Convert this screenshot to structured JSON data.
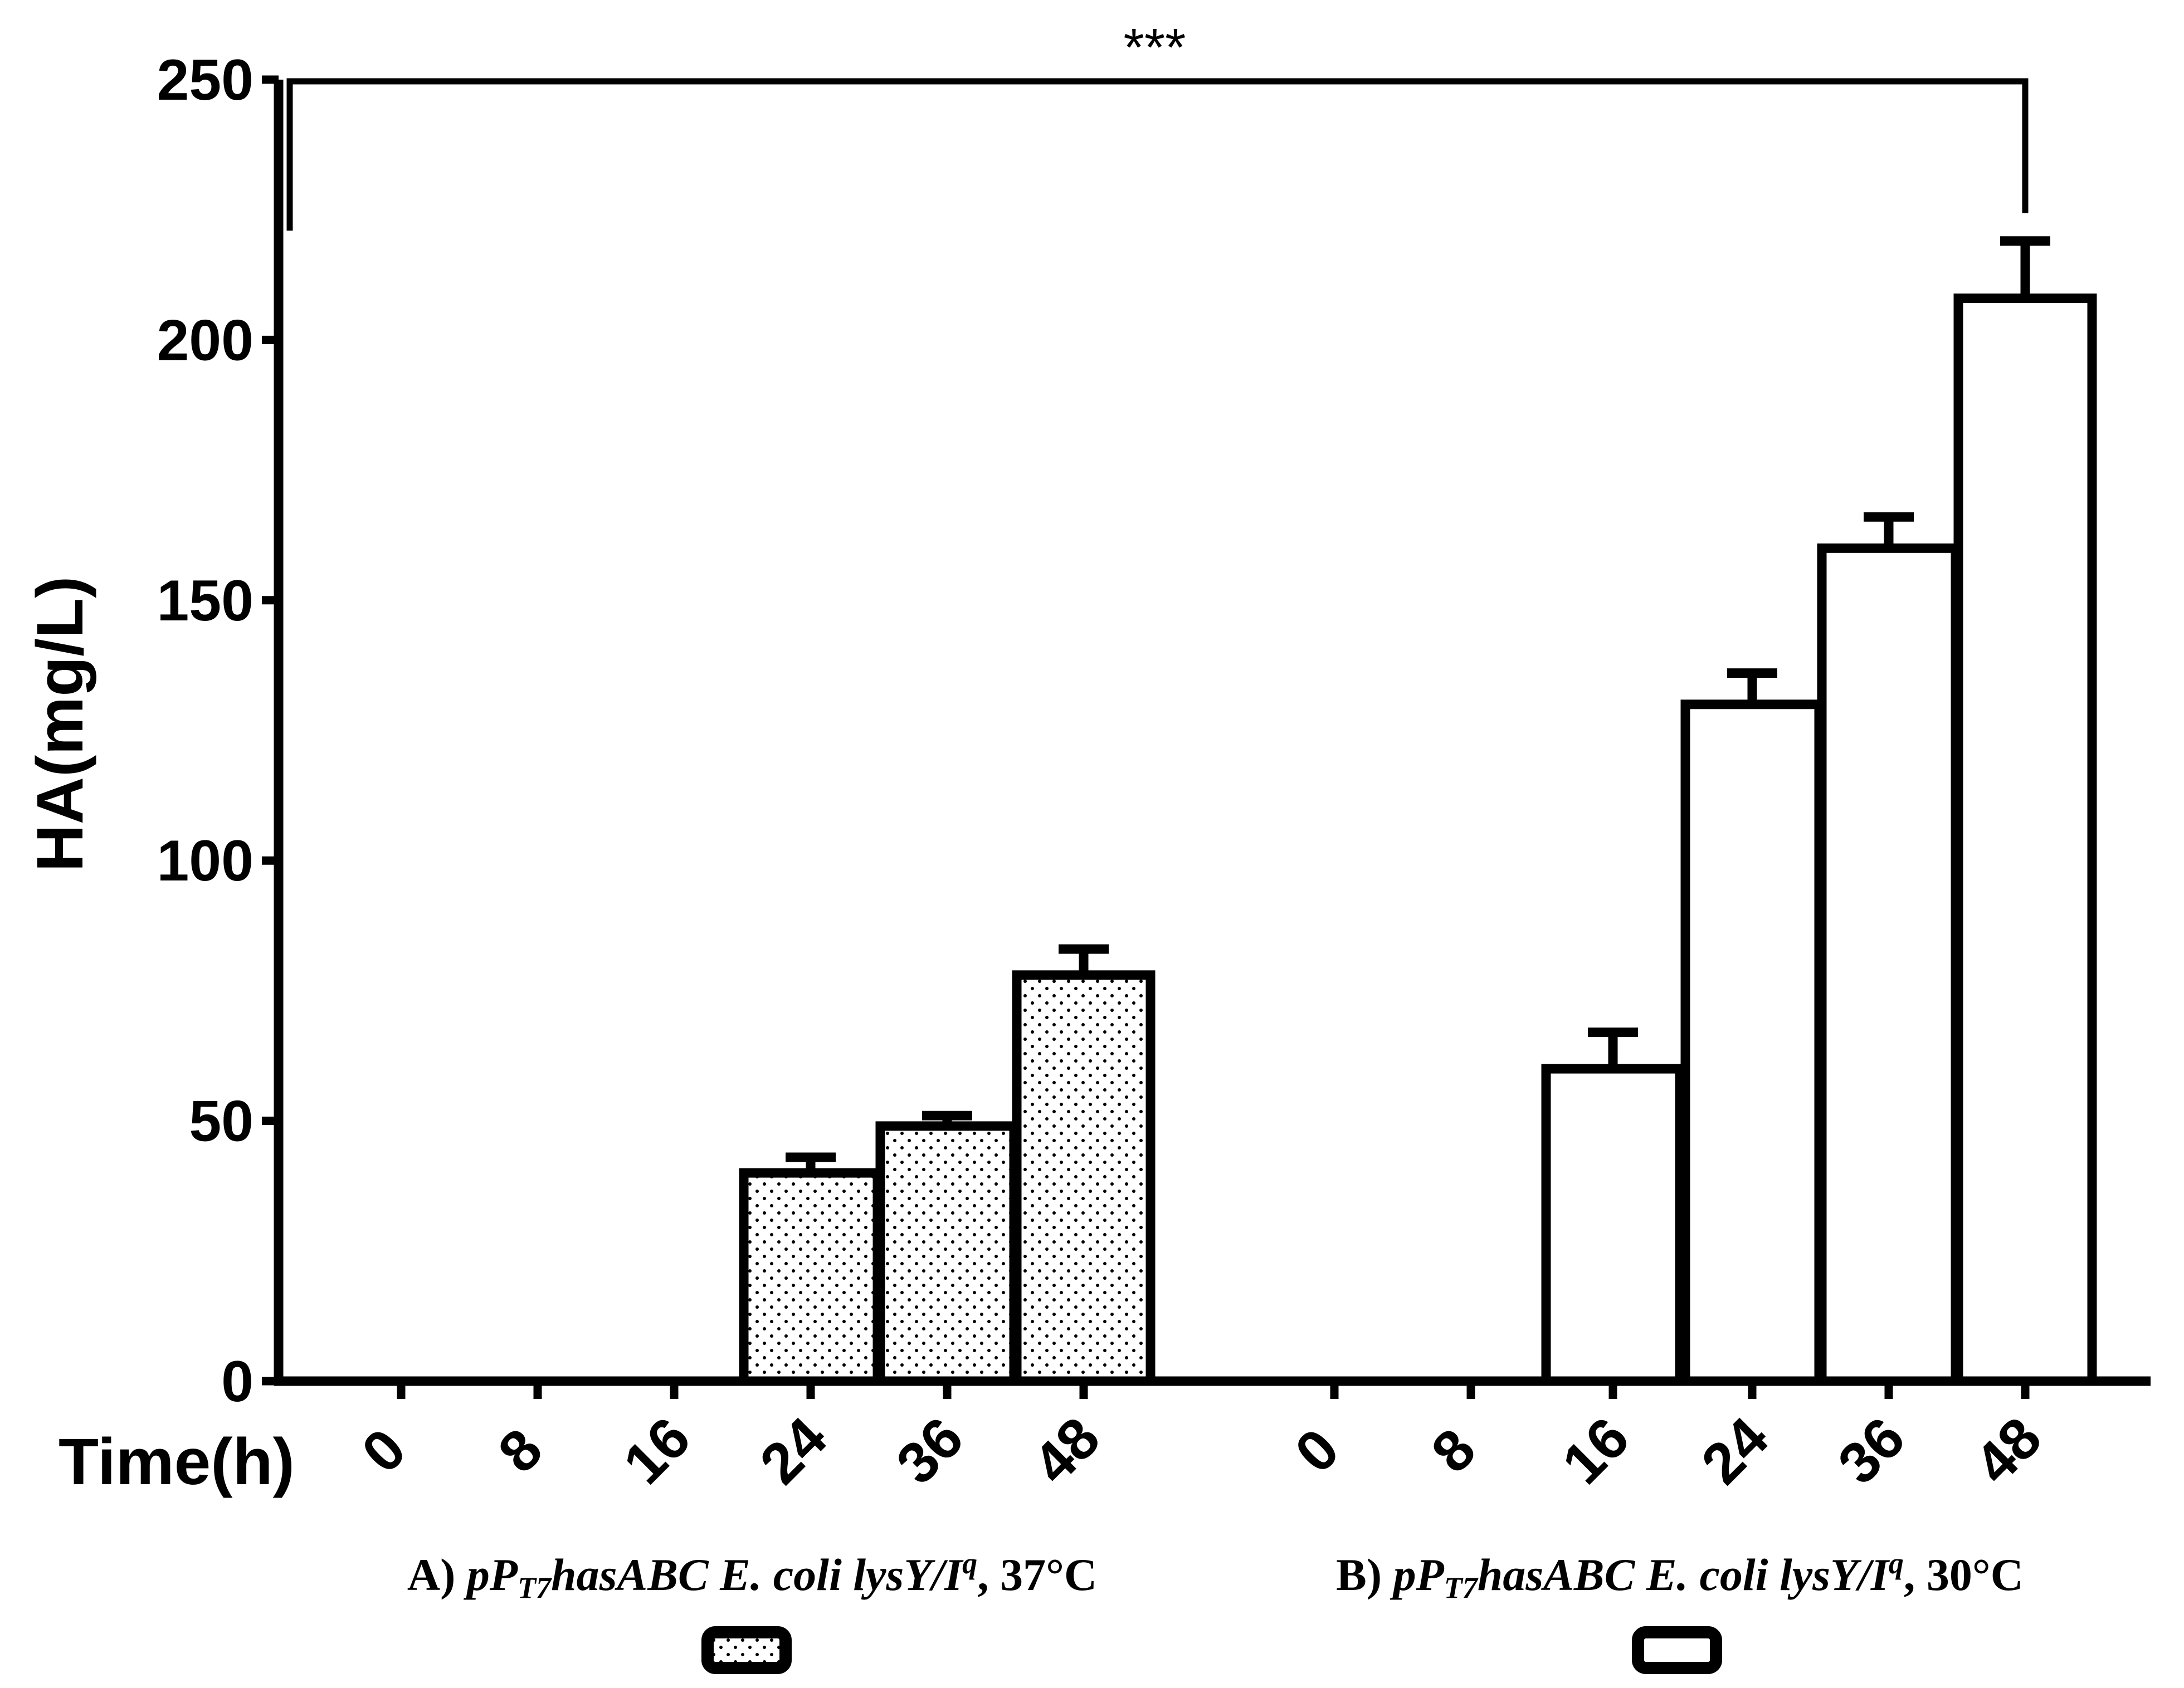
{
  "chart_data": {
    "type": "bar",
    "ylabel": "HA(mg/L)",
    "xlabel": "Time(h)",
    "ylim": [
      0,
      250
    ],
    "yticks": [
      0,
      50,
      100,
      150,
      200,
      250
    ],
    "significance": "***",
    "groups": [
      {
        "id": "A",
        "label": {
          "prefix": "A) ",
          "p": "pP",
          "sub": "T7",
          "mid": "hasABC E. coli lysY/I",
          "sup": "q",
          "suffix": ", 37°C"
        },
        "pattern": "dotted",
        "categories": [
          "0",
          "8",
          "16",
          "24",
          "36",
          "48"
        ],
        "values": [
          0,
          0,
          0,
          40,
          49,
          78
        ],
        "errors": [
          0,
          0,
          0,
          3,
          2,
          5
        ]
      },
      {
        "id": "B",
        "label": {
          "prefix": "B) ",
          "p": "pP",
          "sub": "T7",
          "mid": "hasABC E. coli lysY/I",
          "sup": "q",
          "suffix": ", 30°C"
        },
        "pattern": "open",
        "categories": [
          "0",
          "8",
          "16",
          "24",
          "36",
          "48"
        ],
        "values": [
          0,
          0,
          60,
          130,
          160,
          208
        ],
        "errors": [
          0,
          0,
          7,
          6,
          6,
          11
        ]
      }
    ]
  }
}
